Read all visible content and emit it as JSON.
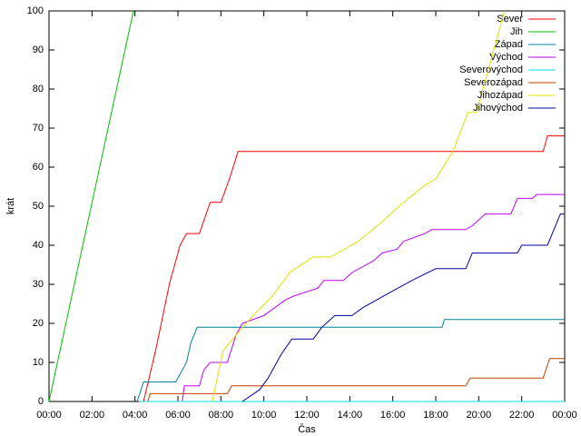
{
  "chart_data": {
    "type": "line",
    "xlabel": "Čas",
    "ylabel": "krát",
    "xlim": [
      0,
      24
    ],
    "ylim": [
      0,
      100
    ],
    "xticks": [
      {
        "value": 0,
        "label": "00:00"
      },
      {
        "value": 2,
        "label": "02:00"
      },
      {
        "value": 4,
        "label": "04:00"
      },
      {
        "value": 6,
        "label": "06:00"
      },
      {
        "value": 8,
        "label": "08:00"
      },
      {
        "value": 10,
        "label": "10:00"
      },
      {
        "value": 12,
        "label": "12:00"
      },
      {
        "value": 14,
        "label": "14:00"
      },
      {
        "value": 16,
        "label": "16:00"
      },
      {
        "value": 18,
        "label": "18:00"
      },
      {
        "value": 20,
        "label": "20:00"
      },
      {
        "value": 22,
        "label": "22:00"
      },
      {
        "value": 24,
        "label": "00:00"
      }
    ],
    "yticks": [
      0,
      10,
      20,
      30,
      40,
      50,
      60,
      70,
      80,
      90,
      100
    ],
    "legend": "top-right",
    "series": [
      {
        "name": "Sever",
        "color": "#ff0000",
        "x": [
          4.4,
          5.0,
          5.6,
          6.1,
          6.4,
          7.0,
          7.5,
          8.0,
          8.4,
          8.8,
          23.0,
          23.2,
          24
        ],
        "values": [
          0,
          14,
          30,
          40,
          43,
          43,
          51,
          51,
          57,
          64,
          64,
          68,
          68
        ]
      },
      {
        "name": "Jih",
        "color": "#00c000",
        "x": [
          0,
          3.93
        ],
        "values": [
          0,
          100
        ]
      },
      {
        "name": "Západ",
        "color": "#0080a0",
        "x": [
          4.1,
          4.4,
          5.9,
          6.1,
          6.4,
          6.6,
          6.9,
          18.3,
          18.4,
          24
        ],
        "values": [
          0,
          5,
          5,
          7,
          10,
          15,
          19,
          19,
          21,
          21
        ]
      },
      {
        "name": "Východ",
        "color": "#c000ff",
        "x": [
          6.2,
          6.3,
          7.0,
          7.2,
          7.5,
          8.3,
          8.7,
          9.0,
          10.0,
          11.0,
          11.4,
          12.5,
          12.8,
          13.7,
          14.1,
          15.1,
          15.5,
          16.2,
          16.5,
          17.5,
          17.8,
          19.4,
          19.7,
          20.3,
          21.5,
          21.8,
          22.5,
          22.7,
          24
        ],
        "values": [
          0,
          4,
          4,
          8,
          10,
          10,
          17,
          20,
          22,
          26,
          27,
          29,
          31,
          31,
          33,
          36,
          38,
          39,
          41,
          43,
          44,
          44,
          45,
          48,
          48,
          52,
          52,
          53,
          53
        ]
      },
      {
        "name": "Severovýchod",
        "color": "#00e0e0",
        "x": [
          4.2,
          24
        ],
        "values": [
          0,
          0
        ]
      },
      {
        "name": "Severozápad",
        "color": "#c04000",
        "x": [
          4.6,
          4.7,
          8.3,
          8.5,
          19.4,
          19.6,
          23.0,
          23.3,
          24
        ],
        "values": [
          0,
          2,
          2,
          4,
          4,
          6,
          6,
          11,
          11
        ]
      },
      {
        "name": "Jihozápad",
        "color": "#e0e000",
        "x": [
          7.6,
          8.1,
          8.7,
          9.5,
          10.4,
          11.2,
          12.3,
          13.1,
          14.4,
          15.5,
          16.3,
          17.4,
          18.0,
          18.8,
          19.5,
          19.9,
          20.5,
          21.2
        ],
        "values": [
          0,
          13,
          17,
          22,
          27,
          33,
          37,
          37,
          41,
          46,
          50,
          55,
          57,
          64,
          74,
          74,
          86,
          100
        ]
      },
      {
        "name": "Jihovýchod",
        "color": "#0000a0",
        "x": [
          9.0,
          9.8,
          10.2,
          10.8,
          11.3,
          12.3,
          12.7,
          13.3,
          14.1,
          14.6,
          15.9,
          16.9,
          18.0,
          19.4,
          19.7,
          21.8,
          22.0,
          23.2,
          23.8,
          24
        ],
        "values": [
          0,
          3,
          6,
          12,
          16,
          16,
          19,
          22,
          22,
          24,
          28,
          31,
          34,
          34,
          38,
          38,
          40,
          40,
          48,
          48
        ]
      }
    ]
  }
}
